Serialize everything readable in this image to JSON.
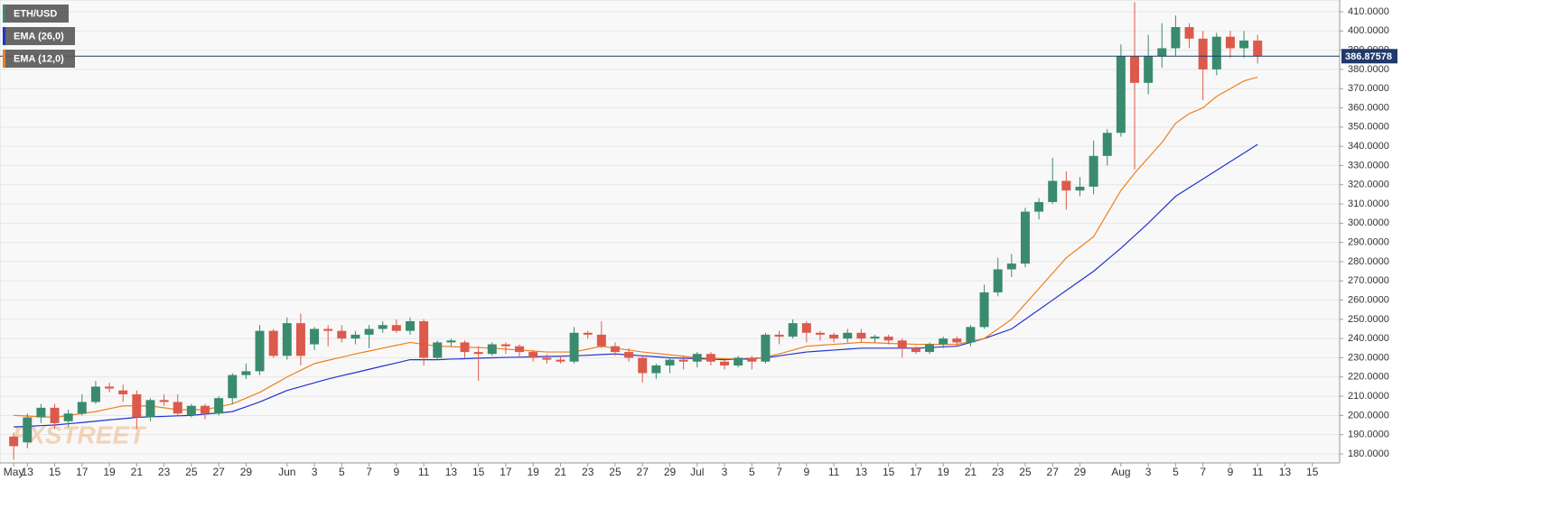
{
  "chart_data": {
    "type": "candlestick",
    "x": [
      "05-12",
      "05-13",
      "05-14",
      "05-15",
      "05-16",
      "05-17",
      "05-18",
      "05-19",
      "05-20",
      "05-21",
      "05-22",
      "05-23",
      "05-24",
      "05-25",
      "05-26",
      "05-27",
      "05-28",
      "05-29",
      "05-30",
      "05-31",
      "06-01",
      "06-02",
      "06-03",
      "06-04",
      "06-05",
      "06-06",
      "06-07",
      "06-08",
      "06-09",
      "06-10",
      "06-11",
      "06-12",
      "06-13",
      "06-14",
      "06-15",
      "06-16",
      "06-17",
      "06-18",
      "06-19",
      "06-20",
      "06-21",
      "06-22",
      "06-23",
      "06-24",
      "06-25",
      "06-26",
      "06-27",
      "06-28",
      "06-29",
      "06-30",
      "07-01",
      "07-02",
      "07-03",
      "07-04",
      "07-05",
      "07-06",
      "07-07",
      "07-08",
      "07-09",
      "07-10",
      "07-11",
      "07-12",
      "07-13",
      "07-14",
      "07-15",
      "07-16",
      "07-17",
      "07-18",
      "07-19",
      "07-20",
      "07-21",
      "07-22",
      "07-23",
      "07-24",
      "07-25",
      "07-26",
      "07-27",
      "07-28",
      "07-29",
      "07-30",
      "07-31",
      "08-01",
      "08-02",
      "08-03",
      "08-04",
      "08-05",
      "08-06",
      "08-07",
      "08-08",
      "08-09",
      "08-10",
      "08-11"
    ],
    "series": [
      {
        "name": "ETH/USD",
        "type": "candlestick",
        "up_color": "#3a8b6e",
        "down_color": "#dc5a4b",
        "open": [
          189,
          186,
          199,
          204,
          197,
          201,
          207,
          215,
          213,
          211,
          199,
          208,
          207,
          200,
          205,
          201,
          209,
          221,
          223,
          244,
          231,
          248,
          237,
          245,
          244,
          240,
          242,
          245,
          247,
          244,
          249,
          230,
          238,
          238,
          233,
          232,
          237,
          236,
          233,
          230,
          229,
          228,
          243,
          242,
          236,
          233,
          230,
          222,
          226,
          229,
          228,
          232,
          228,
          226,
          230,
          228,
          242,
          241,
          248,
          243,
          242,
          240,
          243,
          240,
          241,
          239,
          235,
          233,
          237,
          240,
          238,
          246,
          264,
          276,
          279,
          306,
          311,
          322,
          317,
          319,
          335,
          347,
          387,
          373,
          387,
          391,
          402,
          396,
          380,
          397,
          391,
          395
        ],
        "high": [
          191,
          201,
          206,
          206,
          203,
          211,
          218,
          217,
          216,
          213,
          209,
          211,
          211,
          206,
          206,
          210,
          222,
          227,
          247,
          245,
          251,
          253,
          246,
          247,
          247,
          244,
          247,
          249,
          250,
          251,
          250,
          239,
          240,
          239,
          236,
          238,
          238,
          237,
          234,
          232,
          231,
          246,
          244,
          249,
          238,
          235,
          231,
          227,
          230,
          231,
          233,
          233,
          229,
          231,
          231,
          243,
          244,
          250,
          249,
          244,
          243,
          245,
          245,
          242,
          242,
          240,
          236,
          238,
          241,
          241,
          247,
          268,
          282,
          284,
          308,
          313,
          334,
          327,
          324,
          343,
          349,
          393,
          415,
          398,
          404,
          408,
          404,
          400,
          399,
          400,
          400,
          398
        ],
        "low": [
          177,
          183,
          196,
          193,
          194,
          200,
          206,
          212,
          207,
          193,
          197,
          205,
          200,
          199,
          198,
          200,
          206,
          219,
          221,
          230,
          229,
          226,
          234,
          236,
          238,
          237,
          235,
          243,
          243,
          242,
          226,
          229,
          236,
          230,
          218,
          231,
          232,
          230,
          228,
          227,
          227,
          227,
          240,
          235,
          231,
          228,
          217,
          219,
          222,
          224,
          225,
          226,
          224,
          225,
          224,
          227,
          237,
          240,
          238,
          239,
          238,
          238,
          238,
          238,
          237,
          230,
          232,
          232,
          235,
          236,
          236,
          245,
          262,
          272,
          277,
          302,
          310,
          307,
          314,
          315,
          330,
          345,
          328,
          367,
          381,
          387,
          391,
          364,
          377,
          386,
          386,
          383
        ],
        "close": [
          184,
          199,
          204,
          196,
          201,
          207,
          215,
          214,
          211,
          199,
          208,
          207,
          201,
          205,
          201,
          209,
          221,
          223,
          244,
          231,
          248,
          231,
          245,
          244,
          240,
          242,
          245,
          247,
          244,
          249,
          230,
          238,
          239,
          233,
          232,
          237,
          236,
          233,
          230,
          229,
          228,
          243,
          242,
          236,
          233,
          230,
          222,
          226,
          229,
          228,
          232,
          228,
          226,
          230,
          228,
          242,
          241,
          248,
          243,
          242,
          240,
          243,
          240,
          241,
          239,
          235,
          233,
          237,
          240,
          238,
          246,
          264,
          276,
          279,
          306,
          311,
          322,
          317,
          319,
          335,
          347,
          387,
          373,
          387,
          391,
          402,
          396,
          380,
          397,
          391,
          395,
          387
        ]
      },
      {
        "name": "EMA (26,0)",
        "type": "line",
        "color": "#2233cc",
        "values": [
          194,
          194.3,
          194.7,
          195,
          195.7,
          196.3,
          197,
          197.7,
          198.3,
          199,
          199.3,
          199.5,
          199.8,
          200,
          200.7,
          201.3,
          202,
          204.5,
          207,
          210,
          213,
          215,
          217,
          219,
          220.7,
          222.3,
          224,
          225.7,
          227.3,
          229,
          229,
          229,
          229.3,
          229.5,
          229.8,
          230,
          230.2,
          230.3,
          230.5,
          230.7,
          230.8,
          231,
          231.3,
          231.7,
          232,
          231.5,
          231,
          230.5,
          230,
          229.8,
          229.5,
          229.3,
          229,
          229.3,
          229.7,
          230,
          231,
          232,
          233,
          233.5,
          234,
          234.5,
          235,
          235,
          235,
          235,
          235,
          235.3,
          235.7,
          236,
          238,
          240,
          242.5,
          245,
          250,
          255,
          260,
          265,
          270,
          275,
          281,
          287,
          293.5,
          300,
          307,
          314,
          318.5,
          323,
          327.5,
          332,
          336.5,
          341
        ]
      },
      {
        "name": "EMA (12,0)",
        "type": "line",
        "color": "#f07f1c",
        "values": [
          200,
          199.7,
          199.3,
          199,
          200,
          201,
          202,
          203.5,
          205,
          205,
          205,
          204,
          203,
          203,
          203,
          204.5,
          206,
          209,
          212,
          216,
          220,
          223.5,
          227,
          228.7,
          230.3,
          232,
          233.5,
          235,
          236.5,
          238,
          237,
          236,
          235.8,
          235.5,
          235.3,
          235,
          234.5,
          234,
          233.5,
          233,
          233,
          233,
          234.5,
          236,
          235,
          234,
          233,
          232.3,
          231.5,
          230.8,
          230,
          229.8,
          229.5,
          229.3,
          229,
          230.5,
          232,
          234,
          236,
          236.5,
          237,
          237.5,
          238,
          237.8,
          237.5,
          237.3,
          237,
          237,
          237,
          237,
          238.5,
          240,
          245,
          250,
          258,
          266,
          274,
          282,
          287.5,
          293,
          305,
          317,
          326,
          334,
          342,
          352,
          357,
          360,
          366,
          370,
          374,
          376
        ]
      }
    ],
    "last_price": 386.87578,
    "last_price_color": "#1f3a6b",
    "watermark": "FXSTREET",
    "xlim": [
      "05-11",
      "08-17"
    ],
    "xticks": [
      {
        "value": "05-12",
        "label": "May"
      },
      {
        "value": "05-13",
        "label": "13"
      },
      {
        "value": "05-15",
        "label": "15"
      },
      {
        "value": "05-17",
        "label": "17"
      },
      {
        "value": "05-19",
        "label": "19"
      },
      {
        "value": "05-21",
        "label": "21"
      },
      {
        "value": "05-23",
        "label": "23"
      },
      {
        "value": "05-25",
        "label": "25"
      },
      {
        "value": "05-27",
        "label": "27"
      },
      {
        "value": "05-29",
        "label": "29"
      },
      {
        "value": "06-01",
        "label": "Jun"
      },
      {
        "value": "06-03",
        "label": "3"
      },
      {
        "value": "06-05",
        "label": "5"
      },
      {
        "value": "06-07",
        "label": "7"
      },
      {
        "value": "06-09",
        "label": "9"
      },
      {
        "value": "06-11",
        "label": "11"
      },
      {
        "value": "06-13",
        "label": "13"
      },
      {
        "value": "06-15",
        "label": "15"
      },
      {
        "value": "06-17",
        "label": "17"
      },
      {
        "value": "06-19",
        "label": "19"
      },
      {
        "value": "06-21",
        "label": "21"
      },
      {
        "value": "06-23",
        "label": "23"
      },
      {
        "value": "06-25",
        "label": "25"
      },
      {
        "value": "06-27",
        "label": "27"
      },
      {
        "value": "06-29",
        "label": "29"
      },
      {
        "value": "07-01",
        "label": "Jul"
      },
      {
        "value": "07-03",
        "label": "3"
      },
      {
        "value": "07-05",
        "label": "5"
      },
      {
        "value": "07-07",
        "label": "7"
      },
      {
        "value": "07-09",
        "label": "9"
      },
      {
        "value": "07-11",
        "label": "11"
      },
      {
        "value": "07-13",
        "label": "13"
      },
      {
        "value": "07-15",
        "label": "15"
      },
      {
        "value": "07-17",
        "label": "17"
      },
      {
        "value": "07-19",
        "label": "19"
      },
      {
        "value": "07-21",
        "label": "21"
      },
      {
        "value": "07-23",
        "label": "23"
      },
      {
        "value": "07-25",
        "label": "25"
      },
      {
        "value": "07-27",
        "label": "27"
      },
      {
        "value": "07-29",
        "label": "29"
      },
      {
        "value": "08-01",
        "label": "Aug"
      },
      {
        "value": "08-03",
        "label": "3"
      },
      {
        "value": "08-05",
        "label": "5"
      },
      {
        "value": "08-07",
        "label": "7"
      },
      {
        "value": "08-09",
        "label": "9"
      },
      {
        "value": "08-11",
        "label": "11"
      },
      {
        "value": "08-13",
        "label": "13"
      },
      {
        "value": "08-15",
        "label": "15"
      }
    ],
    "ylim": [
      175.3,
      416.1
    ],
    "yticks": [
      {
        "value": 180,
        "label": "180.0000"
      },
      {
        "value": 190,
        "label": "190.0000"
      },
      {
        "value": 200,
        "label": "200.0000"
      },
      {
        "value": 210,
        "label": "210.0000"
      },
      {
        "value": 220,
        "label": "220.0000"
      },
      {
        "value": 230,
        "label": "230.0000"
      },
      {
        "value": 240,
        "label": "240.0000"
      },
      {
        "value": 250,
        "label": "250.0000"
      },
      {
        "value": 260,
        "label": "260.0000"
      },
      {
        "value": 270,
        "label": "270.0000"
      },
      {
        "value": 280,
        "label": "280.0000"
      },
      {
        "value": 290,
        "label": "290.0000"
      },
      {
        "value": 300,
        "label": "300.0000"
      },
      {
        "value": 310,
        "label": "310.0000"
      },
      {
        "value": 320,
        "label": "320.0000"
      },
      {
        "value": 330,
        "label": "330.0000"
      },
      {
        "value": 340,
        "label": "340.0000"
      },
      {
        "value": 350,
        "label": "350.0000"
      },
      {
        "value": 360,
        "label": "360.0000"
      },
      {
        "value": 370,
        "label": "370.0000"
      },
      {
        "value": 380,
        "label": "380.0000"
      },
      {
        "value": 390,
        "label": "390.0000"
      },
      {
        "value": 400,
        "label": "400.0000"
      },
      {
        "value": 410,
        "label": "410.0000"
      }
    ],
    "grid": true
  }
}
